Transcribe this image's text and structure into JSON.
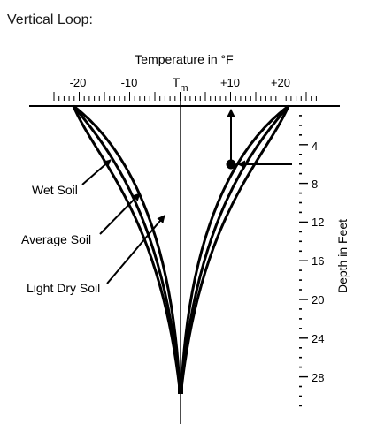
{
  "page": {
    "heading": "Vertical Loop:"
  },
  "diagram": {
    "temperature_axis": {
      "title": "Temperature in °F",
      "tick_labels": [
        "-20",
        "-10",
        "+10",
        "+20"
      ],
      "mean_label": "T",
      "mean_subscript": "m"
    },
    "depth_axis": {
      "title": "Depth in Feet",
      "tick_labels": [
        "4",
        "8",
        "12",
        "16",
        "20",
        "24",
        "28"
      ]
    },
    "curve_labels": {
      "wet": "Wet Soil",
      "average": "Average Soil",
      "light_dry": "Light Dry Soil"
    },
    "colors": {
      "ink": "#000000",
      "background": "#ffffff"
    }
  }
}
